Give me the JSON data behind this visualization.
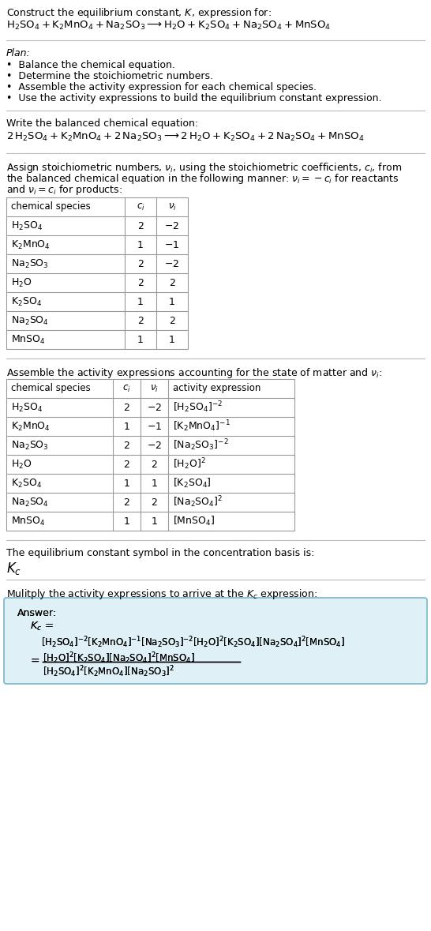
{
  "title_line1": "Construct the equilibrium constant, $K$, expression for:",
  "title_line2": "$\\mathrm{H_2SO_4 + K_2MnO_4 + Na_2SO_3 \\longrightarrow H_2O + K_2SO_4 + Na_2SO_4 + MnSO_4}$",
  "plan_header": "Plan:",
  "plan_items": [
    "\\textbullet  Balance the chemical equation.",
    "\\textbullet  Determine the stoichiometric numbers.",
    "\\textbullet  Assemble the activity expression for each chemical species.",
    "\\textbullet  Use the activity expressions to build the equilibrium constant expression."
  ],
  "balanced_header": "Write the balanced chemical equation:",
  "balanced_eq": "$\\mathrm{2\\,H_2SO_4 + K_2MnO_4 + 2\\,Na_2SO_3 \\longrightarrow 2\\,H_2O + K_2SO_4 + 2\\,Na_2SO_4 + MnSO_4}$",
  "stoich_para": [
    "Assign stoichiometric numbers, $\\nu_i$, using the stoichiometric coefficients, $c_i$, from",
    "the balanced chemical equation in the following manner: $\\nu_i = -c_i$ for reactants",
    "and $\\nu_i = c_i$ for products:"
  ],
  "table1_headers": [
    "chemical species",
    "$c_i$",
    "$\\nu_i$"
  ],
  "table1_rows": [
    [
      "$\\mathrm{H_2SO_4}$",
      "2",
      "$-2$"
    ],
    [
      "$\\mathrm{K_2MnO_4}$",
      "1",
      "$-1$"
    ],
    [
      "$\\mathrm{Na_2SO_3}$",
      "2",
      "$-2$"
    ],
    [
      "$\\mathrm{H_2O}$",
      "2",
      "2"
    ],
    [
      "$\\mathrm{K_2SO_4}$",
      "1",
      "1"
    ],
    [
      "$\\mathrm{Na_2SO_4}$",
      "2",
      "2"
    ],
    [
      "$\\mathrm{MnSO_4}$",
      "1",
      "1"
    ]
  ],
  "activity_header": "Assemble the activity expressions accounting for the state of matter and $\\nu_i$:",
  "table2_headers": [
    "chemical species",
    "$c_i$",
    "$\\nu_i$",
    "activity expression"
  ],
  "table2_rows": [
    [
      "$\\mathrm{H_2SO_4}$",
      "2",
      "$-2$",
      "$[\\mathrm{H_2SO_4}]^{-2}$"
    ],
    [
      "$\\mathrm{K_2MnO_4}$",
      "1",
      "$-1$",
      "$[\\mathrm{K_2MnO_4}]^{-1}$"
    ],
    [
      "$\\mathrm{Na_2SO_3}$",
      "2",
      "$-2$",
      "$[\\mathrm{Na_2SO_3}]^{-2}$"
    ],
    [
      "$\\mathrm{H_2O}$",
      "2",
      "2",
      "$[\\mathrm{H_2O}]^{2}$"
    ],
    [
      "$\\mathrm{K_2SO_4}$",
      "1",
      "1",
      "$[\\mathrm{K_2SO_4}]$"
    ],
    [
      "$\\mathrm{Na_2SO_4}$",
      "2",
      "2",
      "$[\\mathrm{Na_2SO_4}]^{2}$"
    ],
    [
      "$\\mathrm{MnSO_4}$",
      "1",
      "1",
      "$[\\mathrm{MnSO_4}]$"
    ]
  ],
  "kc_header": "The equilibrium constant symbol in the concentration basis is:",
  "kc_symbol": "$K_c$",
  "multiply_header": "Mulitply the activity expressions to arrive at the $K_c$ expression:",
  "answer_label": "Answer:",
  "bg_color": "#ffffff",
  "table_border_color": "#999999",
  "answer_box_color": "#dff0f7",
  "answer_box_border": "#7ab5cc",
  "text_color": "#000000",
  "font_size": 9.0,
  "line_color": "#bbbbbb"
}
